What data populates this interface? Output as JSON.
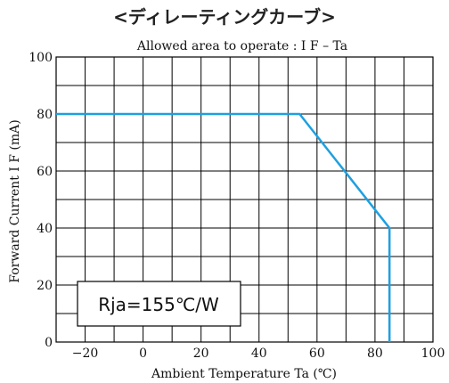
{
  "chart_data": {
    "type": "line",
    "heading": "<ディレーティングカーブ>",
    "title": "Allowed area to operate : I F – Ta",
    "xlabel": "Ambient Temperature Ta (℃)",
    "ylabel": "Forward Current I F (mA)",
    "xlim": [
      -30,
      100
    ],
    "ylim": [
      0,
      100
    ],
    "x_ticks": [
      -20,
      0,
      20,
      40,
      60,
      80,
      100
    ],
    "x_tick_labels": [
      "−20",
      "0",
      "20",
      "40",
      "60",
      "80",
      "100"
    ],
    "y_ticks": [
      0,
      20,
      40,
      60,
      80,
      100
    ],
    "y_tick_labels": [
      "0",
      "20",
      "40",
      "60",
      "80",
      "100"
    ],
    "grid": true,
    "grid_step_x": 10,
    "grid_step_y": 10,
    "annotation": "Rja=155℃/W",
    "line_color": "#1ea0e0",
    "series": [
      {
        "x": [
          -30,
          54,
          85,
          85
        ],
        "y": [
          80,
          80,
          40,
          0
        ]
      }
    ]
  }
}
